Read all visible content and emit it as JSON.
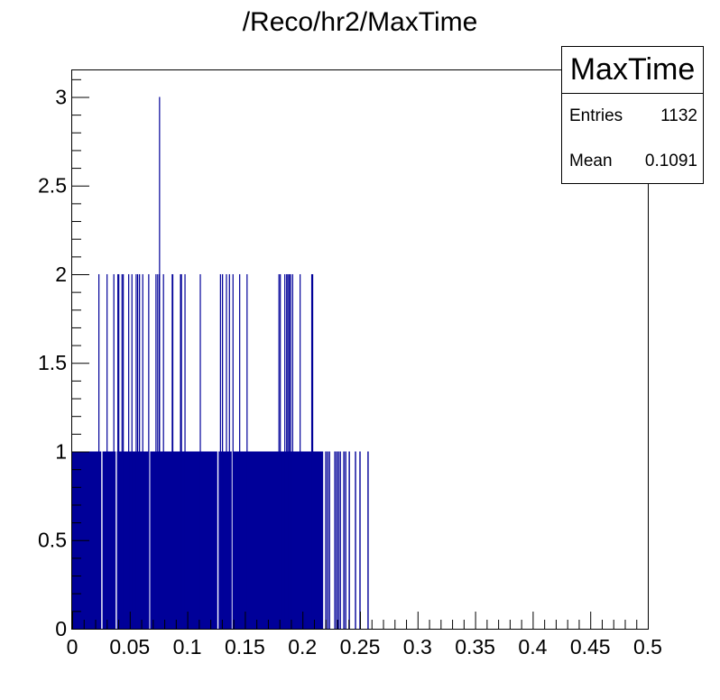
{
  "title": "/Reco/hr2/MaxTime",
  "stats": {
    "name": "MaxTime",
    "rows": [
      {
        "label": "Entries",
        "value": "1132"
      },
      {
        "label": "Mean",
        "value": "0.1091"
      }
    ]
  },
  "colors": {
    "fill": "#000099",
    "axis": "#000000",
    "background": "#ffffff"
  },
  "chart_data": {
    "type": "bar",
    "title": "/Reco/hr2/MaxTime",
    "xlabel": "",
    "ylabel": "",
    "xlim": [
      0,
      0.5
    ],
    "ylim": [
      0,
      3.15
    ],
    "x_ticks": [
      "0",
      "0.05",
      "0.1",
      "0.15",
      "0.2",
      "0.25",
      "0.3",
      "0.35",
      "0.4",
      "0.45",
      "0.5"
    ],
    "y_ticks": [
      "0",
      "0.5",
      "1",
      "1.5",
      "2",
      "2.5",
      "3"
    ],
    "legend": {
      "name": "MaxTime",
      "entries": 1132,
      "mean": 0.1091
    },
    "description": "Fine-binned histogram; nearly all bins in [0, ~0.218] have 1 entry, dozens of bins have 2, one bin at ~0.076 has 3; sparse entries up to ~0.257.",
    "base_range": [
      0.0,
      0.218
    ],
    "base_value": 1,
    "gaps_x": [
      0.0258,
      0.0383,
      0.0672,
      0.1266,
      0.1391
    ],
    "bins_value_2_x": [
      0.0232,
      0.0303,
      0.0362,
      0.0397,
      0.0405,
      0.0433,
      0.0444,
      0.0491,
      0.0519,
      0.0556,
      0.0569,
      0.0585,
      0.0613,
      0.0665,
      0.0728,
      0.0743,
      0.0757,
      0.0793,
      0.0869,
      0.0874,
      0.0941,
      0.0949,
      0.098,
      0.1113,
      0.1288,
      0.1306,
      0.134,
      0.1366,
      0.1397,
      0.1455,
      0.1519,
      0.1796,
      0.1808,
      0.1847,
      0.1863,
      0.1874,
      0.1886,
      0.1897,
      0.1915,
      0.198,
      0.2081,
      0.2089
    ],
    "bins_value_3_x": [
      0.0759
    ],
    "sparse_value_1_x": [
      0.2203,
      0.2219,
      0.2235,
      0.2282,
      0.2298,
      0.2313,
      0.2329,
      0.236,
      0.2376,
      0.2407,
      0.2461,
      0.25,
      0.257
    ]
  }
}
